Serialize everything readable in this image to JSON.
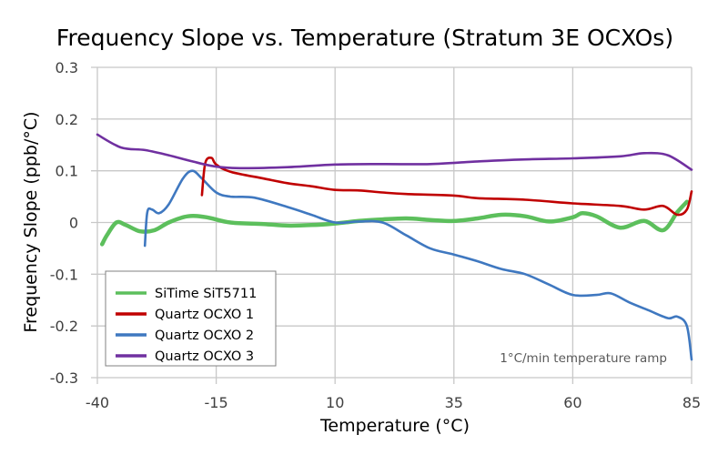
{
  "chart_data": {
    "type": "line",
    "title": "Frequency Slope vs. Temperature (Stratum 3E OCXOs)",
    "xlabel": "Temperature (°C)",
    "ylabel": "Frequency Slope (ppb/°C)",
    "xlim": [
      -40,
      85
    ],
    "ylim": [
      -0.3,
      0.3
    ],
    "xticks": [
      -40,
      -15,
      10,
      35,
      60,
      85
    ],
    "xtick_labels": [
      "-40",
      "-15",
      "10",
      "35",
      "60",
      "85"
    ],
    "yticks": [
      0.3,
      0.2,
      0.1,
      0,
      -0.1,
      -0.2,
      -0.3
    ],
    "ytick_labels": [
      "0.3",
      "0.2",
      "0.1",
      "0",
      "-0.1",
      "-0.2",
      "-0.3"
    ],
    "grid": true,
    "legend_position": "bottom-left",
    "annotation": "1°C/min temperature ramp",
    "series": [
      {
        "name": "SiTime SiT5711",
        "color": "#5cbf5c",
        "x": [
          -39,
          -38,
          -36,
          -34,
          -31,
          -28,
          -25,
          -21,
          -17,
          -12,
          -5,
          0,
          5,
          10,
          15,
          20,
          25,
          30,
          35,
          40,
          45,
          50,
          55,
          60,
          62,
          65,
          70,
          75,
          79,
          82,
          84
        ],
        "y": [
          -0.042,
          -0.025,
          0.0,
          -0.005,
          -0.017,
          -0.015,
          0.0,
          0.012,
          0.01,
          0.0,
          -0.003,
          -0.006,
          -0.005,
          -0.002,
          0.003,
          0.006,
          0.008,
          0.005,
          0.003,
          0.008,
          0.015,
          0.012,
          0.002,
          0.01,
          0.018,
          0.012,
          -0.01,
          0.003,
          -0.015,
          0.02,
          0.04
        ]
      },
      {
        "name": "Quartz OCXO 1",
        "color": "#c00000",
        "x": [
          -18,
          -17.3,
          -16,
          -15,
          -12,
          -5,
          0,
          5,
          10,
          15,
          20,
          25,
          35,
          40,
          50,
          60,
          70,
          75,
          79,
          82,
          84,
          85
        ],
        "y": [
          0.053,
          0.115,
          0.125,
          0.112,
          0.098,
          0.085,
          0.076,
          0.07,
          0.063,
          0.062,
          0.058,
          0.055,
          0.052,
          0.047,
          0.044,
          0.037,
          0.032,
          0.025,
          0.032,
          0.015,
          0.025,
          0.06
        ]
      },
      {
        "name": "Quartz OCXO 2",
        "color": "#3f78c0",
        "x": [
          -30,
          -29.5,
          -28.5,
          -27,
          -25,
          -22,
          -20,
          -18,
          -15,
          -12,
          -7,
          0,
          5,
          10,
          15,
          20,
          25,
          30,
          35,
          40,
          45,
          50,
          55,
          60,
          65,
          68,
          72,
          76,
          80,
          82,
          84,
          85
        ],
        "y": [
          -0.045,
          0.02,
          0.025,
          0.018,
          0.035,
          0.085,
          0.1,
          0.085,
          0.058,
          0.05,
          0.048,
          0.03,
          0.015,
          0.0,
          0.002,
          0.0,
          -0.025,
          -0.05,
          -0.062,
          -0.075,
          -0.09,
          -0.1,
          -0.12,
          -0.14,
          -0.14,
          -0.137,
          -0.155,
          -0.17,
          -0.185,
          -0.182,
          -0.2,
          -0.265
        ]
      },
      {
        "name": "Quartz OCXO 3",
        "color": "#7030a0",
        "x": [
          -40,
          -35,
          -30,
          -25,
          -20,
          -15,
          -10,
          0,
          10,
          20,
          30,
          40,
          50,
          60,
          70,
          75,
          80,
          85
        ],
        "y": [
          0.17,
          0.145,
          0.14,
          0.13,
          0.118,
          0.108,
          0.105,
          0.107,
          0.112,
          0.113,
          0.113,
          0.118,
          0.122,
          0.124,
          0.128,
          0.134,
          0.13,
          0.102
        ]
      }
    ]
  }
}
